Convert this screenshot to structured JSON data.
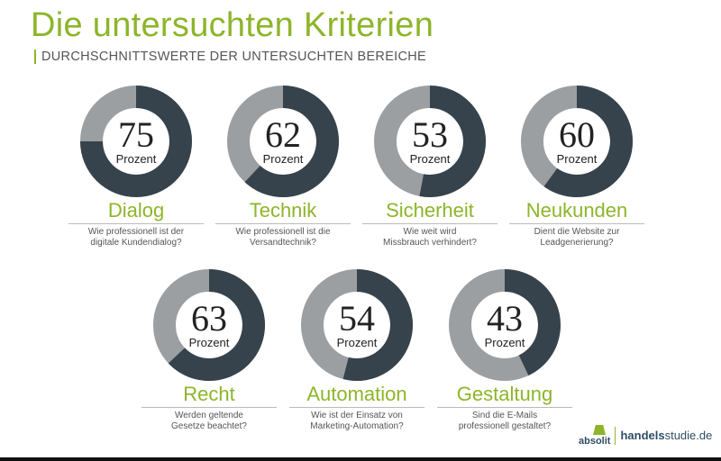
{
  "header": {
    "title": "Die untersuchten Kriterien",
    "subtitle": "DURCHSCHNITTSWERTE DER UNTERSUCHTEN BEREICHE"
  },
  "colors": {
    "accent": "#8db52a",
    "filled": "#36434c",
    "remainder": "#9c9fa2"
  },
  "chart_data": {
    "type": "pie",
    "variant": "donut",
    "unit": "Prozent",
    "max": 100,
    "items": [
      {
        "name": "Dialog",
        "value": 75,
        "question": "Wie professionell ist der digitale Kundendialog?"
      },
      {
        "name": "Technik",
        "value": 62,
        "question": "Wie professionell ist die Versandtechnik?"
      },
      {
        "name": "Sicherheit",
        "value": 53,
        "question": "Wie weit wird Missbrauch verhindert?"
      },
      {
        "name": "Neukunden",
        "value": 60,
        "question": "Dient die Website zur Leadgenerierung?"
      },
      {
        "name": "Recht",
        "value": 63,
        "question": "Werden geltende Gesetze beachtet?"
      },
      {
        "name": "Automation",
        "value": 54,
        "question": "Wie ist der Einsatz von Marketing-Automation?"
      },
      {
        "name": "Gestaltung",
        "value": 43,
        "question": "Sind die E-Mails professionell gestaltet?"
      }
    ]
  },
  "footer": {
    "logo_absolit": "absolit",
    "logo_site_bold": "handels",
    "logo_site_rest": "studie.de"
  }
}
